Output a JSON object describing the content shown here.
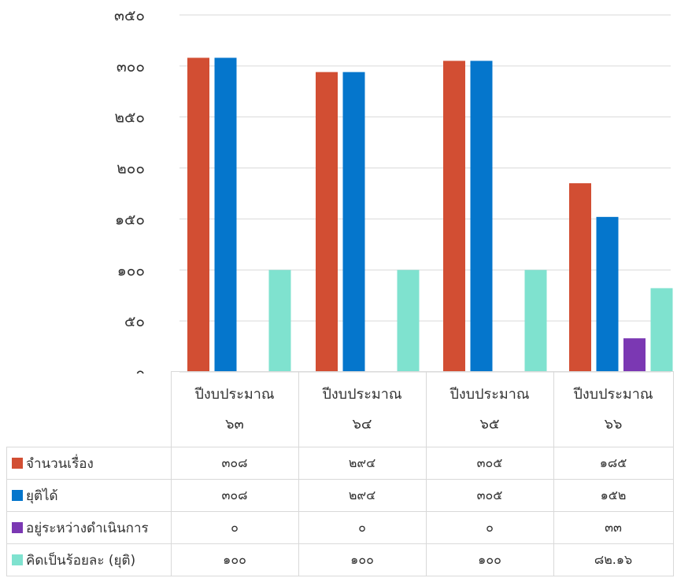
{
  "chart_data": {
    "type": "bar",
    "ylim": [
      0,
      350
    ],
    "yticks": [
      "๐",
      "๕๐",
      "๑๐๐",
      "๑๕๐",
      "๒๐๐",
      "๒๕๐",
      "๓๐๐",
      "๓๕๐"
    ],
    "ytick_values": [
      0,
      50,
      100,
      150,
      200,
      250,
      300,
      350
    ],
    "grid": true,
    "categories": [
      {
        "line1": "ปีงบประมาณ",
        "line2": "๖๓"
      },
      {
        "line1": "ปีงบประมาณ",
        "line2": "๖๔"
      },
      {
        "line1": "ปีงบประมาณ",
        "line2": "๖๕"
      },
      {
        "line1": "ปีงบประมาณ",
        "line2": "๖๖"
      }
    ],
    "series": [
      {
        "name": "จำนวนเรื่อง",
        "color": "#d24e33",
        "values": [
          308,
          294,
          305,
          185
        ],
        "labels": [
          "๓๐๘",
          "๒๙๔",
          "๓๐๕",
          "๑๘๕"
        ]
      },
      {
        "name": "ยุติได้",
        "color": "#0576cc",
        "values": [
          308,
          294,
          305,
          152
        ],
        "labels": [
          "๓๐๘",
          "๒๙๔",
          "๓๐๕",
          "๑๕๒"
        ]
      },
      {
        "name": "อยู่ระหว่างดำเนินการ",
        "color": "#7b38b3",
        "values": [
          0,
          0,
          0,
          33
        ],
        "labels": [
          "๐",
          "๐",
          "๐",
          "๓๓"
        ]
      },
      {
        "name": "คิดเป็นร้อยละ (ยุติ)",
        "color": "#7fe2cf",
        "values": [
          100,
          100,
          100,
          82.16
        ],
        "labels": [
          "๑๐๐",
          "๑๐๐",
          "๑๐๐",
          "๘๒.๑๖"
        ]
      }
    ]
  }
}
